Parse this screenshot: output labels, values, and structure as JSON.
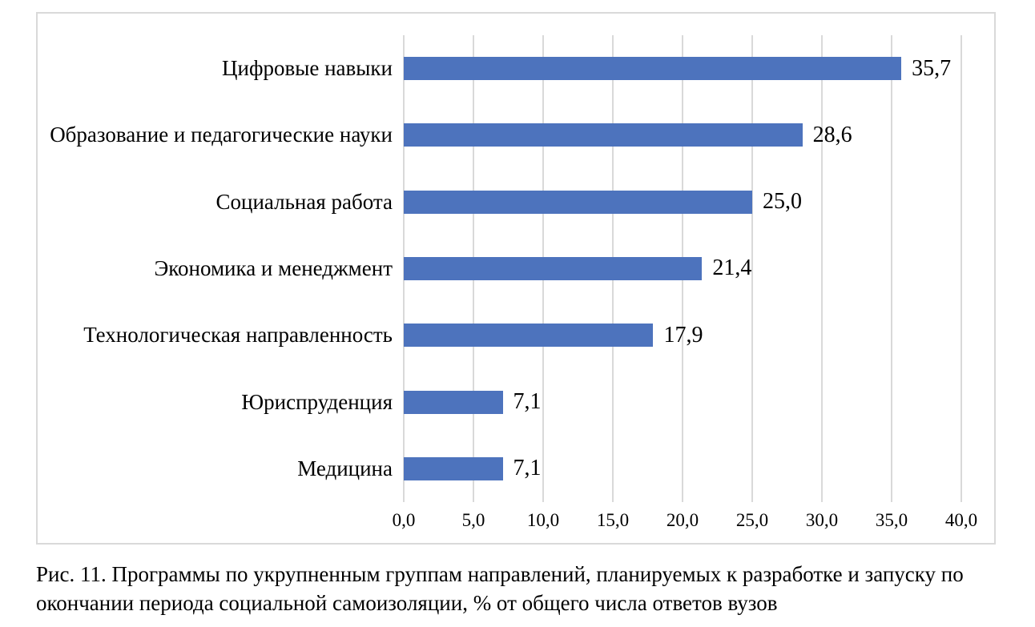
{
  "chart_data": {
    "type": "bar",
    "orientation": "horizontal",
    "categories": [
      "Цифровые навыки",
      "Образование и педагогические науки",
      "Социальная работа",
      "Экономика и менеджмент",
      "Технологическая направленность",
      "Юриспруденция",
      "Медицина"
    ],
    "values": [
      35.7,
      28.6,
      25.0,
      21.4,
      17.9,
      7.1,
      7.1
    ],
    "value_labels": [
      "35,7",
      "28,6",
      "25,0",
      "21,4",
      "17,9",
      "7,1",
      "7,1"
    ],
    "x_tick_labels": [
      "0,0",
      "5,0",
      "10,0",
      "15,0",
      "20,0",
      "25,0",
      "30,0",
      "35,0",
      "40,0"
    ],
    "xlim": [
      0,
      40
    ],
    "grid": true,
    "legend_position": "none",
    "bar_color": "#4D73BD",
    "gridline_color": "#D9D9D9",
    "frame_border_color": "#D9D9D9",
    "value_decimal_separator": ","
  },
  "caption": {
    "text": "Рис. 11. Программы по укрупненным группам направлений, планируемых к разработке и запуску по окончании периода социальной самоизоляции, % от общего числа ответов вузов"
  }
}
